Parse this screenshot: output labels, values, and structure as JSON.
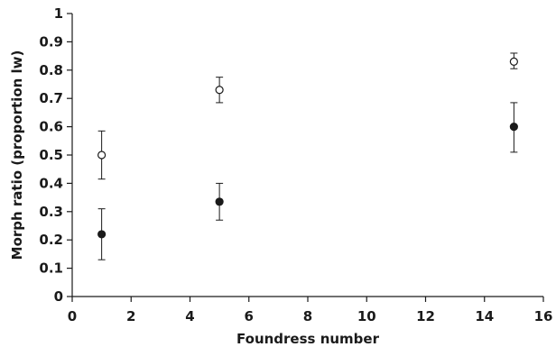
{
  "chart_data": {
    "type": "scatter",
    "title": "",
    "xlabel": "Foundress number",
    "ylabel": "Morph ratio (proportion lw)",
    "xlim": [
      0,
      16
    ],
    "ylim": [
      0,
      1
    ],
    "xticks": [
      0,
      2,
      4,
      6,
      8,
      10,
      12,
      14,
      16
    ],
    "yticks": [
      0,
      0.1,
      0.2,
      0.3,
      0.4,
      0.5,
      0.6,
      0.7,
      0.8,
      0.9,
      1
    ],
    "ytick_labels": [
      "0",
      "0.1",
      "0.2",
      "0.3",
      "0.4",
      "0.5",
      "0.6",
      "0.7",
      "0.8",
      "0.9",
      "1"
    ],
    "grid": false,
    "legend": "none",
    "series": [
      {
        "marker": "open-circle",
        "color": "#1a1a1a",
        "points": [
          {
            "x": 1,
            "y": 0.5,
            "err_low": 0.415,
            "err_high": 0.585
          },
          {
            "x": 5,
            "y": 0.73,
            "err_low": 0.685,
            "err_high": 0.775
          },
          {
            "x": 15,
            "y": 0.83,
            "err_low": 0.805,
            "err_high": 0.86
          }
        ]
      },
      {
        "marker": "filled-circle",
        "color": "#1a1a1a",
        "points": [
          {
            "x": 1,
            "y": 0.22,
            "err_low": 0.13,
            "err_high": 0.31
          },
          {
            "x": 5,
            "y": 0.335,
            "err_low": 0.27,
            "err_high": 0.4
          },
          {
            "x": 15,
            "y": 0.6,
            "err_low": 0.51,
            "err_high": 0.685
          }
        ]
      }
    ]
  }
}
